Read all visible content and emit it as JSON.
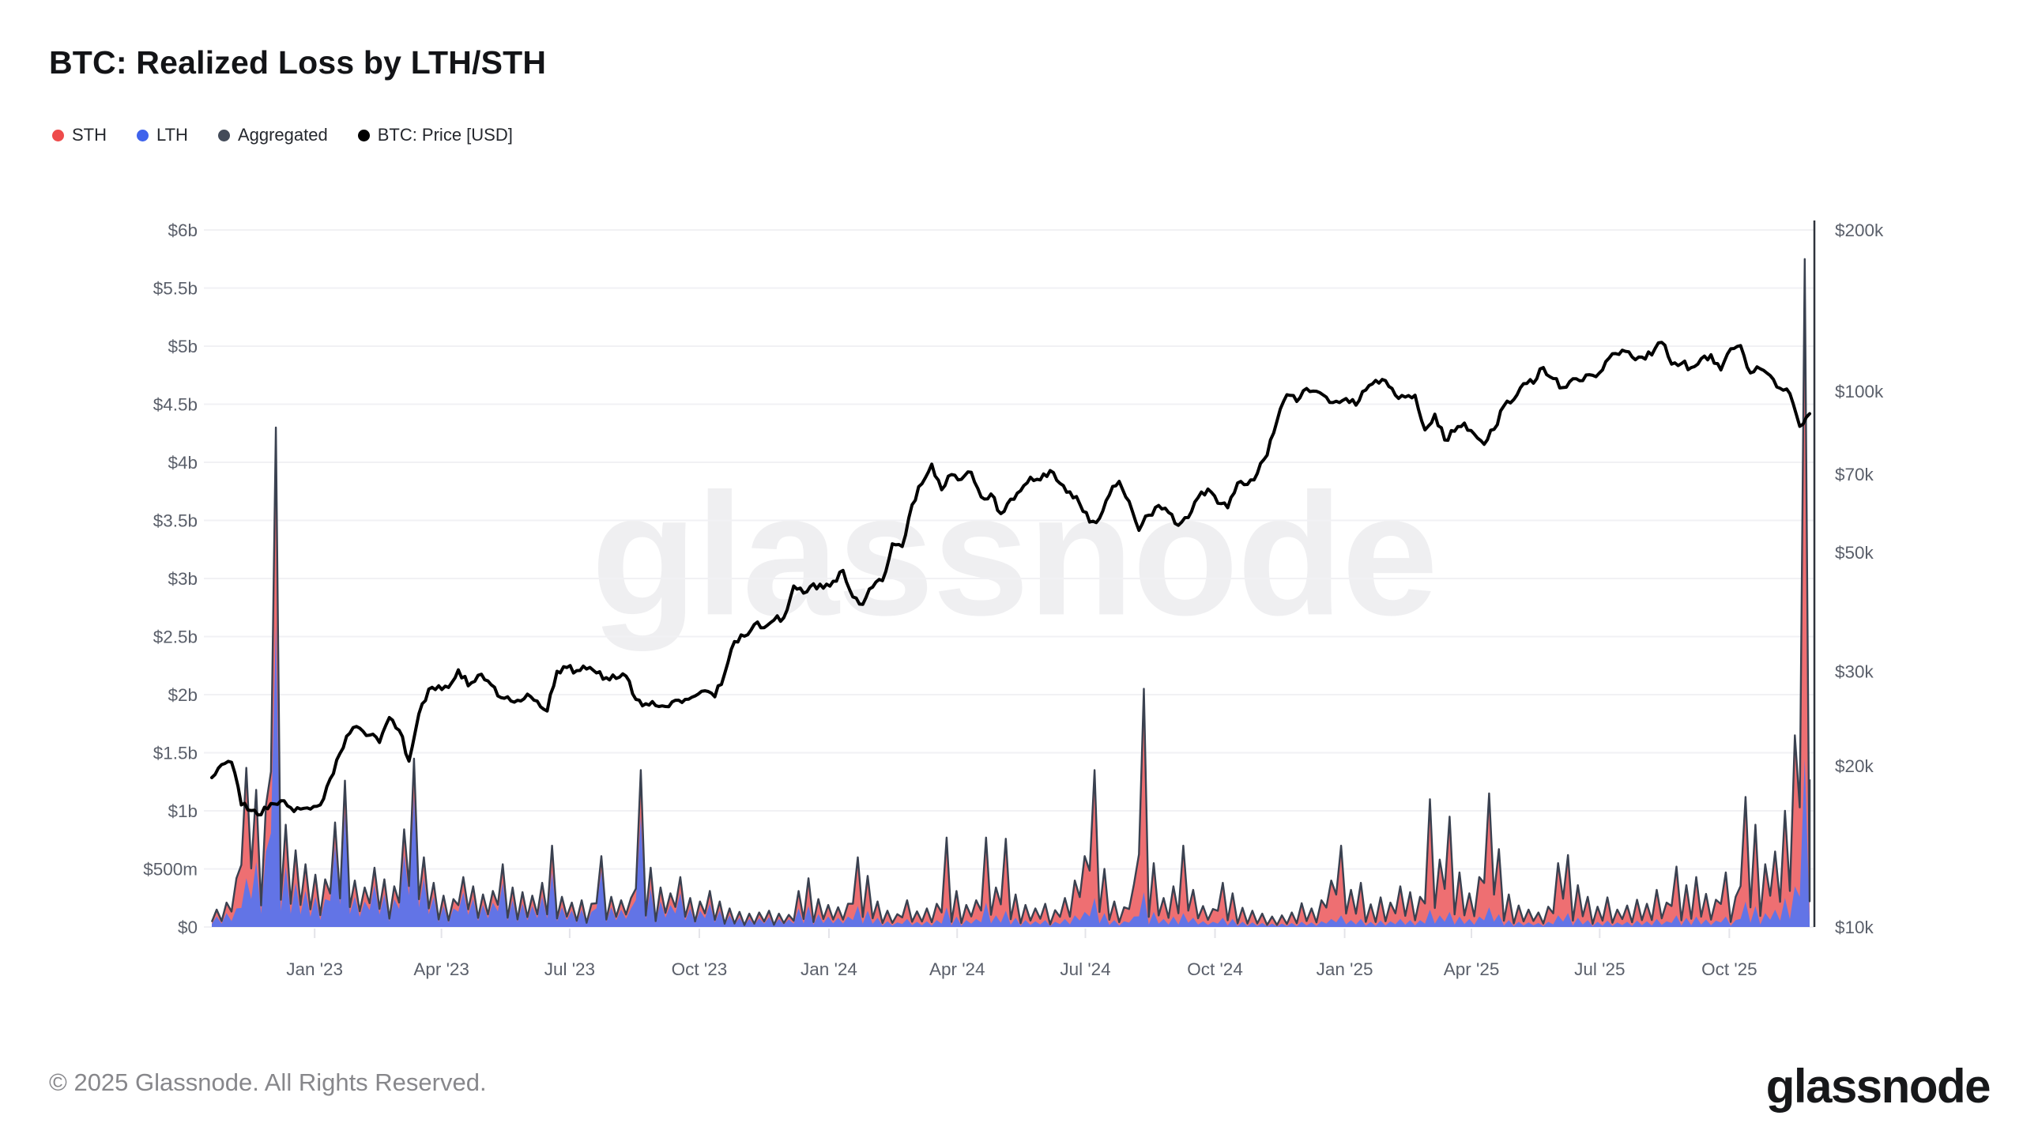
{
  "page": {
    "title": "BTC: Realized Loss by LTH/STH",
    "watermark": "glassnode",
    "footer_copyright": "© 2025 Glassnode. All Rights Reserved.",
    "footer_logo": "glassnode",
    "background_color": "#ffffff"
  },
  "legend": {
    "items": [
      {
        "label": "STH",
        "color": "#ee4b4b"
      },
      {
        "label": "LTH",
        "color": "#3f63ec"
      },
      {
        "label": "Aggregated",
        "color": "#434b59"
      },
      {
        "label": "BTC: Price [USD]",
        "color": "#000000"
      }
    ]
  },
  "chart_data": {
    "type": "area",
    "subtype": "stacked daily realized-loss areas with aggregated outline, plus BTC price line on log right axis",
    "title": "BTC: Realized Loss by LTH/STH",
    "x_start": "2022-10-20",
    "x_step_days": 7,
    "x_ticks": [
      {
        "date": "2023-01-01",
        "label": "Jan '23"
      },
      {
        "date": "2023-04-01",
        "label": "Apr '23"
      },
      {
        "date": "2023-07-01",
        "label": "Jul '23"
      },
      {
        "date": "2023-10-01",
        "label": "Oct '23"
      },
      {
        "date": "2024-01-01",
        "label": "Jan '24"
      },
      {
        "date": "2024-04-01",
        "label": "Apr '24"
      },
      {
        "date": "2024-07-01",
        "label": "Jul '24"
      },
      {
        "date": "2024-10-01",
        "label": "Oct '24"
      },
      {
        "date": "2025-01-01",
        "label": "Jan '25"
      },
      {
        "date": "2025-04-01",
        "label": "Apr '25"
      },
      {
        "date": "2025-07-01",
        "label": "Jul '25"
      },
      {
        "date": "2025-10-01",
        "label": "Oct '25"
      }
    ],
    "left_axis": {
      "unit": "USD realized loss",
      "min_musd": 0,
      "max_musd": 6000,
      "grid": true,
      "ticks": [
        {
          "value_musd": 6000,
          "label": "$6b"
        },
        {
          "value_musd": 5500,
          "label": "$5.5b"
        },
        {
          "value_musd": 5000,
          "label": "$5b"
        },
        {
          "value_musd": 4500,
          "label": "$4.5b"
        },
        {
          "value_musd": 4000,
          "label": "$4b"
        },
        {
          "value_musd": 3500,
          "label": "$3.5b"
        },
        {
          "value_musd": 3000,
          "label": "$3b"
        },
        {
          "value_musd": 2500,
          "label": "$2.5b"
        },
        {
          "value_musd": 2000,
          "label": "$2b"
        },
        {
          "value_musd": 1500,
          "label": "$1.5b"
        },
        {
          "value_musd": 1000,
          "label": "$1b"
        },
        {
          "value_musd": 500,
          "label": "$500m"
        },
        {
          "value_musd": 0,
          "label": "$0"
        }
      ]
    },
    "right_axis": {
      "unit": "BTC price USD",
      "scale": "log",
      "min_kusd": 10,
      "max_kusd": 200,
      "ticks": [
        {
          "value_kusd": 200,
          "label": "$200k"
        },
        {
          "value_kusd": 100,
          "label": "$100k"
        },
        {
          "value_kusd": 70,
          "label": "$70k"
        },
        {
          "value_kusd": 50,
          "label": "$50k"
        },
        {
          "value_kusd": 30,
          "label": "$30k"
        },
        {
          "value_kusd": 20,
          "label": "$20k"
        },
        {
          "value_kusd": 10,
          "label": "$10k"
        }
      ]
    },
    "series": [
      {
        "name": "STH",
        "role": "stacked-area-top",
        "color": "#ee6f72",
        "values_key": "sth_loss_musd"
      },
      {
        "name": "LTH",
        "role": "stacked-area-bottom",
        "color": "#6274e6",
        "values_key": "lth_loss_musd"
      },
      {
        "name": "Aggregated",
        "role": "outline-of-stack-sum",
        "color": "#3a4150"
      },
      {
        "name": "BTC: Price [USD]",
        "role": "line-right-axis",
        "color": "#000000",
        "values_key": "btc_price_kusd"
      }
    ],
    "sth_loss_musd": [
      60,
      90,
      260,
      950,
      620,
      400,
      1700,
      360,
      280,
      230,
      190,
      170,
      200,
      280,
      140,
      120,
      150,
      130,
      110,
      220,
      330,
      180,
      120,
      90,
      80,
      130,
      110,
      90,
      100,
      160,
      110,
      100,
      90,
      120,
      230,
      90,
      70,
      80,
      70,
      130,
      90,
      80,
      90,
      400,
      180,
      120,
      100,
      140,
      90,
      80,
      110,
      80,
      60,
      50,
      45,
      50,
      55,
      45,
      40,
      150,
      240,
      130,
      100,
      90,
      110,
      420,
      300,
      140,
      90,
      70,
      160,
      90,
      110,
      140,
      600,
      220,
      130,
      160,
      560,
      240,
      620,
      200,
      130,
      110,
      140,
      100,
      180,
      300,
      480,
      1100,
      380,
      160,
      120,
      280,
      1750,
      420,
      180,
      260,
      580,
      240,
      130,
      110,
      300,
      220,
      120,
      100,
      80,
      60,
      70,
      90,
      160,
      120,
      180,
      330,
      600,
      260,
      310,
      150,
      200,
      160,
      280,
      240,
      200,
      950,
      480,
      820,
      380,
      220,
      340,
      980,
      560,
      220,
      140,
      110,
      90,
      130,
      450,
      500,
      280,
      200,
      130,
      200,
      110,
      140,
      180,
      150,
      250,
      160,
      420,
      280,
      340,
      220,
      180,
      380,
      200,
      900,
      700,
      420,
      500,
      750,
      1300,
      4300,
      950
    ],
    "lth_loss_musd": [
      90,
      120,
      160,
      420,
      560,
      650,
      2600,
      520,
      380,
      310,
      260,
      240,
      700,
      980,
      260,
      220,
      360,
      280,
      240,
      620,
      1120,
      420,
      260,
      180,
      160,
      300,
      240,
      190,
      210,
      380,
      230,
      200,
      180,
      260,
      470,
      170,
      140,
      150,
      130,
      480,
      170,
      150,
      160,
      950,
      330,
      220,
      190,
      290,
      160,
      140,
      200,
      140,
      100,
      80,
      70,
      75,
      85,
      70,
      65,
      160,
      180,
      110,
      90,
      80,
      90,
      180,
      140,
      80,
      50,
      40,
      70,
      45,
      50,
      60,
      170,
      90,
      60,
      70,
      210,
      100,
      140,
      80,
      60,
      50,
      60,
      45,
      70,
      100,
      130,
      250,
      120,
      60,
      50,
      90,
      300,
      130,
      70,
      90,
      120,
      80,
      50,
      45,
      80,
      70,
      45,
      40,
      35,
      30,
      30,
      35,
      45,
      40,
      50,
      70,
      100,
      60,
      70,
      45,
      55,
      50,
      70,
      60,
      60,
      150,
      100,
      130,
      90,
      70,
      90,
      170,
      110,
      60,
      45,
      40,
      35,
      45,
      100,
      120,
      80,
      60,
      45,
      55,
      40,
      45,
      55,
      50,
      70,
      50,
      100,
      80,
      90,
      65,
      55,
      90,
      60,
      220,
      180,
      120,
      150,
      250,
      350,
      1450,
      320
    ],
    "btc_price_kusd": [
      19.0,
      20.1,
      20.3,
      16.9,
      16.5,
      16.2,
      17.0,
      17.2,
      16.7,
      16.6,
      16.6,
      16.9,
      18.9,
      21.1,
      23.0,
      23.5,
      22.8,
      22.1,
      24.6,
      23.3,
      20.4,
      25.0,
      27.8,
      28.2,
      28.0,
      30.2,
      28.2,
      29.5,
      28.8,
      27.0,
      26.9,
      26.5,
      27.2,
      26.4,
      25.3,
      30.0,
      30.5,
      30.1,
      30.3,
      29.8,
      29.2,
      29.1,
      29.4,
      26.6,
      26.1,
      25.9,
      25.8,
      26.5,
      26.6,
      27.0,
      27.6,
      26.9,
      29.7,
      34.1,
      34.9,
      36.7,
      36.2,
      37.4,
      37.8,
      43.3,
      42.0,
      43.7,
      42.9,
      44.2,
      46.3,
      41.3,
      40.0,
      43.1,
      44.3,
      51.9,
      51.3,
      61.4,
      67.2,
      73.1,
      65.5,
      69.9,
      68.5,
      70.6,
      63.5,
      64.3,
      59.1,
      62.9,
      65.2,
      69.1,
      68.3,
      71.1,
      67.3,
      64.9,
      61.6,
      57.0,
      57.9,
      64.0,
      67.9,
      62.3,
      55.0,
      58.7,
      61.2,
      59.4,
      56.2,
      58.1,
      63.3,
      65.7,
      61.8,
      60.6,
      67.4,
      67.0,
      70.2,
      76.0,
      88.0,
      98.5,
      95.7,
      101.2,
      100.0,
      97.5,
      95.8,
      96.9,
      94.2,
      100.5,
      104.8,
      104.7,
      98.3,
      97.5,
      98.3,
      84.7,
      90.6,
      81.1,
      84.2,
      87.2,
      83.2,
      79.6,
      84.9,
      93.9,
      96.5,
      103.3,
      103.5,
      110.7,
      105.6,
      101.6,
      105.5,
      104.7,
      107.1,
      109.6,
      117.5,
      119.3,
      115.9,
      115.8,
      116.9,
      123.4,
      112.4,
      112.6,
      110.7,
      115.0,
      117.0,
      109.6,
      120.0,
      121.7,
      108.2,
      110.1,
      107.0,
      101.3,
      99.0,
      86.0,
      90.8
    ],
    "style": {
      "grid_color": "#f1f1f4",
      "axis_label_color": "#5a5f6a",
      "right_axis_line_color": "#2f343d",
      "sth_fill": "#ee6f72",
      "lth_fill": "#6274e6",
      "aggregated_stroke": "#3a4150",
      "price_stroke": "#000000",
      "legend_position": "top-left",
      "watermark_text": "glassnode"
    }
  }
}
